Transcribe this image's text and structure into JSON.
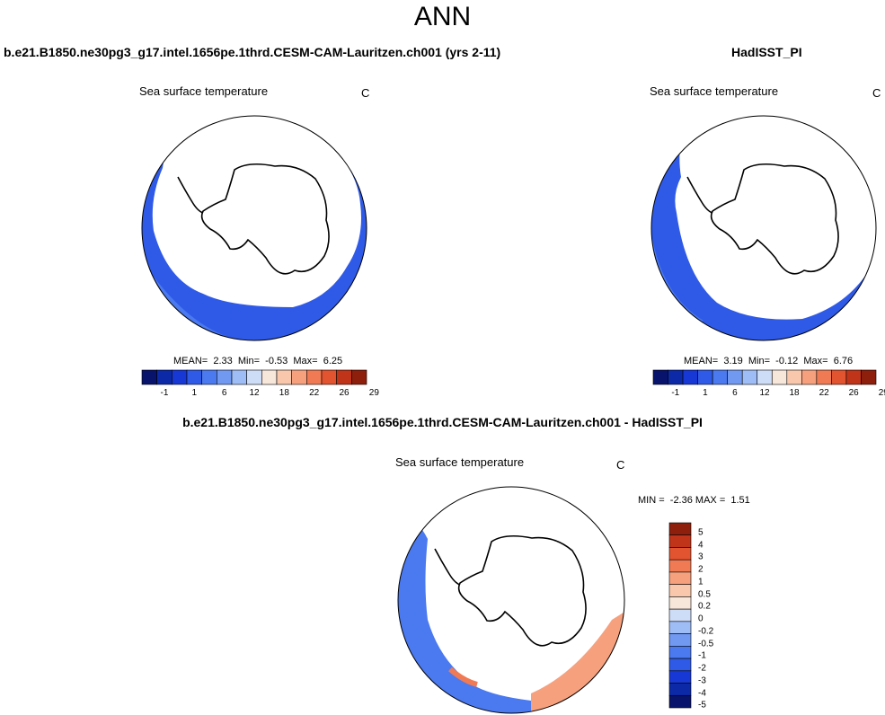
{
  "figure": {
    "title": "ANN",
    "variable_label": "Sea surface temperature",
    "units": "C"
  },
  "panels": [
    {
      "id": "model",
      "case_title": "b.e21.B1850.ne30pg3_g17.intel.1656pe.1thrd.CESM-CAM-Lauritzen.ch001 (yrs 2-11)",
      "stats": {
        "mean_label": "MEAN=",
        "mean": "2.33",
        "min_label": "Min=",
        "min": "-0.53",
        "max_label": "Max=",
        "max": "6.25"
      }
    },
    {
      "id": "obs",
      "case_title": "HadISST_PI",
      "stats": {
        "mean_label": "MEAN=",
        "mean": "3.19",
        "min_label": "Min=",
        "min": "-0.12",
        "max_label": "Max=",
        "max": "6.76"
      }
    },
    {
      "id": "diff",
      "case_title": "b.e21.B1850.ne30pg3_g17.intel.1656pe.1thrd.CESM-CAM-Lauritzen.ch001 - HadISST_PI",
      "stats": {
        "min_label": "MIN =",
        "min": "-2.36",
        "max_label": "MAX =",
        "max": "1.51"
      }
    }
  ],
  "colorbars": {
    "abs": {
      "colors": [
        "#08136b",
        "#0c2aa8",
        "#1838d6",
        "#2f5ae8",
        "#4a79f0",
        "#7199f2",
        "#9ebcf5",
        "#cddcf7",
        "#f7e6da",
        "#f9c7ac",
        "#f6a07e",
        "#f07a54",
        "#e2532f",
        "#c0341a",
        "#8e1f0c"
      ],
      "labels": [
        "-1",
        "1",
        "6",
        "12",
        "18",
        "22",
        "26",
        "29"
      ]
    },
    "diff": {
      "colors": [
        "#8e1f0c",
        "#c0341a",
        "#e2532f",
        "#f07a54",
        "#f6a07e",
        "#f9c7ac",
        "#f7e6da",
        "#cddcf7",
        "#9ebcf5",
        "#7199f2",
        "#4a79f0",
        "#2f5ae8",
        "#1838d6",
        "#0c2aa8",
        "#08136b"
      ],
      "labels": [
        "5",
        "4",
        "3",
        "2",
        "1",
        "0.5",
        "0.2",
        "0",
        "-0.2",
        "-0.5",
        "-1",
        "-2",
        "-3",
        "-4",
        "-5"
      ]
    }
  },
  "colors": {
    "sst_cold": "#2f5ae8",
    "sst_cool": "#4a79f0",
    "sst_light": "#9ebcf5",
    "diff_warm": "#f6a07e",
    "diff_warm_strong": "#f07a54",
    "land": "#ffffff",
    "outline": "#000000"
  }
}
